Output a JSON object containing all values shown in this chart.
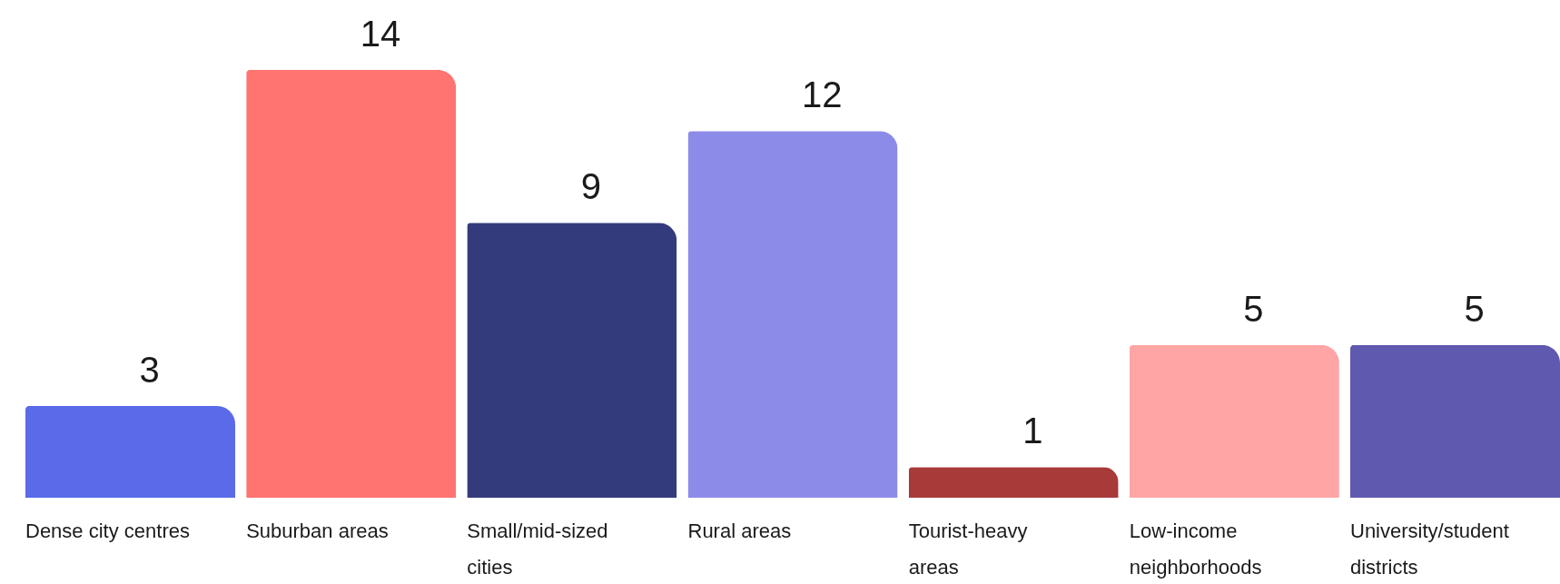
{
  "chart_data": {
    "type": "bar",
    "categories": [
      "Dense city centres",
      "Suburban areas",
      "Small/mid-sized cities",
      "Rural areas",
      "Tourist-heavy areas",
      "Low-income neighborhoods",
      "University/student districts"
    ],
    "values": [
      3,
      14,
      9,
      12,
      1,
      5,
      5
    ],
    "colors": [
      "#5a6ae8",
      "#ff7370",
      "#333b7c",
      "#8d8be8",
      "#a83a3a",
      "#ffa5a5",
      "#5f59b0"
    ],
    "data_labels": true
  }
}
